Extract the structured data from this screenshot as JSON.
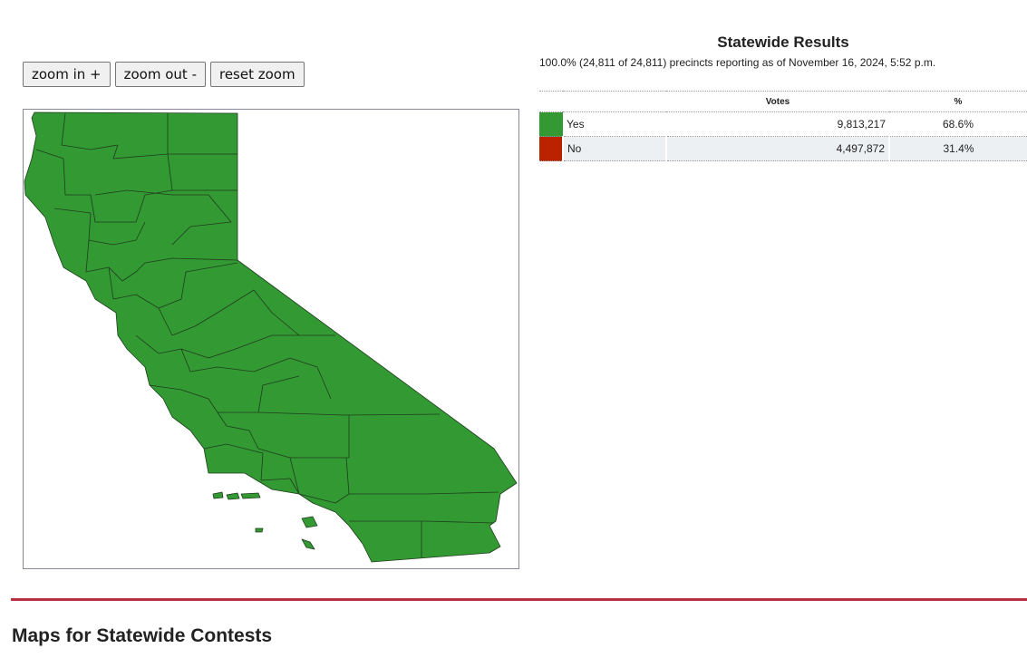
{
  "zoom_controls": [
    "zoom in +",
    "zoom out -",
    "reset zoom"
  ],
  "map": {
    "fill": "#339933",
    "border": "#1f3d1f"
  },
  "results": {
    "title": "Statewide Results",
    "status": "100.0% (24,811 of 24,811) precincts reporting as of November 16, 2024, 5:52 p.m.",
    "columns": [
      "Votes",
      "%"
    ],
    "rows": [
      {
        "choice": "Yes",
        "votes": "9,813,217",
        "percent": "68.6%",
        "color": "#339933"
      },
      {
        "choice": "No",
        "votes": "4,497,872",
        "percent": "31.4%",
        "color": "#bb2200"
      }
    ]
  },
  "section_heading": "Maps for Statewide Contests"
}
